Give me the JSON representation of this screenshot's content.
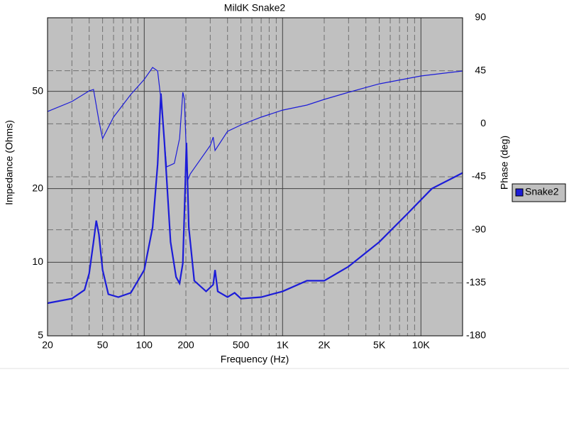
{
  "chart_data": {
    "type": "line",
    "title": "MildK Snake2",
    "x_label": "Frequency (Hz)",
    "y_label": "Impedance (Ohms)",
    "y2_label": "Phase (deg)",
    "xscale": "log",
    "yscale": "log",
    "grid": true,
    "xlim": [
      20,
      20000
    ],
    "ylim": [
      5,
      100
    ],
    "y2lim": [
      -180,
      90
    ],
    "xticks": [
      20,
      50,
      100,
      200,
      500,
      {
        "value": 1000,
        "label": "1K"
      },
      {
        "value": 2000,
        "label": "2K"
      },
      {
        "value": 5000,
        "label": "5K"
      },
      {
        "value": 10000,
        "label": "10K"
      }
    ],
    "xminorticks": [
      30,
      40,
      60,
      70,
      80,
      90,
      300,
      400,
      600,
      700,
      800,
      900,
      3000,
      4000,
      6000,
      7000,
      8000,
      9000
    ],
    "yticks": [
      5,
      10,
      20,
      50
    ],
    "y2ticks": [
      90,
      45,
      0,
      -45,
      -90,
      -135,
      -180
    ],
    "legend": "right",
    "series": [
      {
        "name": "Snake2",
        "color": "#1c1cd8",
        "x": [
          20,
          30,
          37,
          40,
          43,
          45,
          47,
          50,
          55,
          65,
          80,
          100,
          115,
          125,
          132,
          140,
          155,
          170,
          180,
          190,
          198,
          202,
          210,
          230,
          280,
          315,
          325,
          340,
          400,
          450,
          500,
          700,
          1000,
          1500,
          2000,
          3000,
          5000,
          8000,
          12000,
          20000
        ],
        "values": [
          6.8,
          7.1,
          7.7,
          9.0,
          12.1,
          14.8,
          13.0,
          9.3,
          7.4,
          7.2,
          7.5,
          9.3,
          13.9,
          25.2,
          49,
          30.8,
          12.1,
          8.7,
          8.2,
          9.9,
          20.7,
          30.8,
          13.9,
          8.4,
          7.6,
          8.1,
          9.3,
          7.6,
          7.2,
          7.5,
          7.1,
          7.2,
          7.6,
          8.4,
          8.4,
          9.6,
          12.1,
          15.8,
          20,
          23.2
        ]
      },
      {
        "color": "#1c1cd8",
        "axis": "y2",
        "x": [
          20,
          30,
          40,
          43,
          47,
          50,
          60,
          80,
          100,
          115,
          125,
          132,
          145,
          165,
          180,
          190,
          195,
          205,
          215,
          300,
          315,
          325,
          400,
          500,
          700,
          1000,
          1500,
          2000,
          3000,
          5000,
          10000,
          20000
        ],
        "values": [
          10.4,
          18.9,
          27.9,
          29.1,
          2.6,
          -12.5,
          5.6,
          24.9,
          37.6,
          47.8,
          44.8,
          20.7,
          -36.6,
          -33.6,
          -12.5,
          26.7,
          20.7,
          -48.6,
          -42.6,
          -18.5,
          -11.3,
          -22.7,
          -6.4,
          -1.0,
          5.6,
          11.6,
          15.9,
          20.7,
          26.7,
          33.9,
          40.6,
          44.8
        ]
      }
    ]
  }
}
